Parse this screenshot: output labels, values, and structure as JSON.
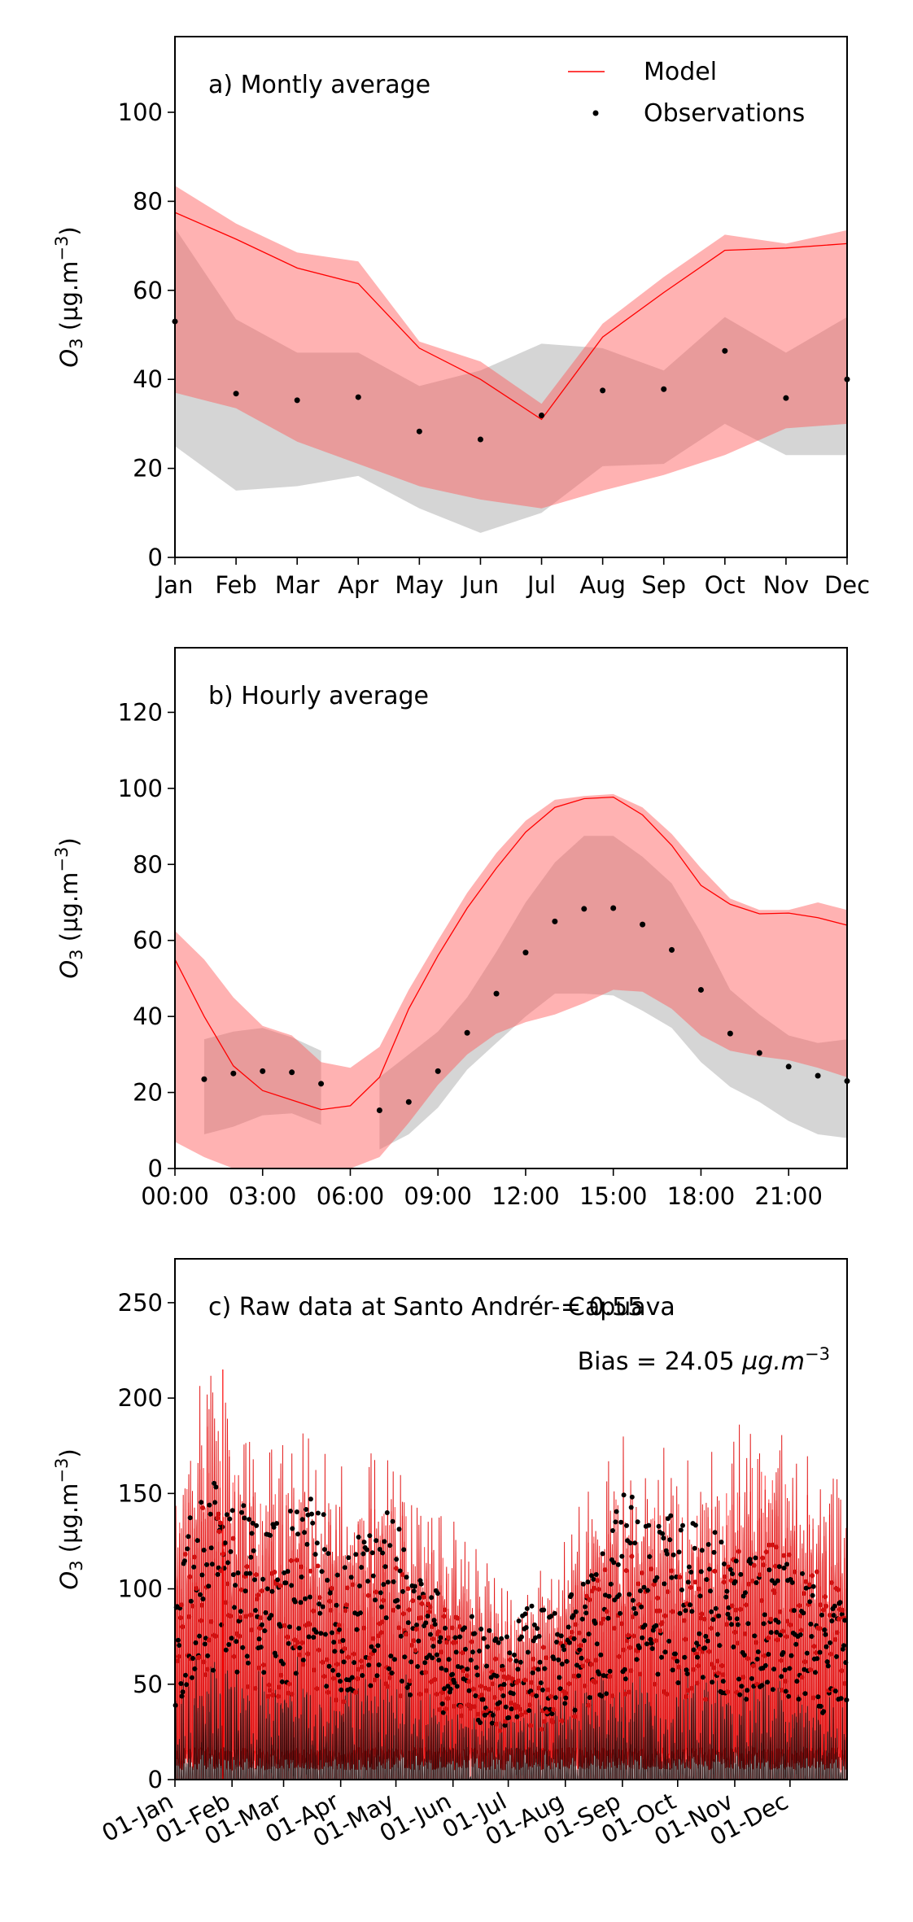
{
  "chart_data": [
    {
      "type": "line",
      "title": "a) Montly average",
      "ylabel": "O3 (µg.m−3)",
      "ylabel_parts": {
        "base": "O",
        "sub": "3",
        "units": " (µg.m",
        "sup": "−3",
        "close": ")"
      },
      "categories": [
        "Jan",
        "Feb",
        "Mar",
        "Apr",
        "May",
        "Jun",
        "Jul",
        "Aug",
        "Sep",
        "Oct",
        "Nov",
        "Dec"
      ],
      "ylim": [
        0,
        117
      ],
      "yticks": [
        0,
        20,
        40,
        60,
        80,
        100
      ],
      "legend": {
        "placement": "top-right",
        "entries": [
          "Model",
          "Observations"
        ]
      },
      "series": [
        {
          "name": "Model",
          "style": "line",
          "color": "#ff0000",
          "values": [
            77.5,
            71.5,
            65,
            61.5,
            47,
            40,
            31,
            49.5,
            59.5,
            69,
            69.5,
            70.5
          ]
        },
        {
          "name": "Observations",
          "style": "points",
          "color": "#000000",
          "values": [
            53,
            36.8,
            35.3,
            36,
            28.3,
            26.5,
            31.9,
            37.5,
            37.8,
            46.4,
            35.8,
            40
          ]
        }
      ],
      "bands": [
        {
          "of": "Observations",
          "color": "#b3b3b3",
          "opacity": 0.55,
          "upper": [
            74,
            53.5,
            46,
            46,
            38.5,
            42,
            48,
            47,
            42,
            54,
            46,
            54
          ],
          "lower": [
            25,
            15,
            16,
            18.3,
            11,
            5.5,
            10,
            20.5,
            21,
            30,
            23,
            23
          ]
        },
        {
          "of": "Model",
          "color": "#ff5555",
          "opacity": 0.45,
          "upper": [
            83.5,
            75,
            68.5,
            66.5,
            48.5,
            44,
            34.5,
            52.5,
            63,
            72.5,
            70.5,
            73.5
          ],
          "lower": [
            37,
            33.5,
            26,
            21,
            16,
            13,
            11,
            15,
            18.5,
            23,
            29,
            30
          ]
        }
      ]
    },
    {
      "type": "line",
      "title": "b) Hourly average",
      "ylabel": "O3 (µg.m−3)",
      "ylabel_parts": {
        "base": "O",
        "sub": "3",
        "units": " (µg.m",
        "sup": "−3",
        "close": ")"
      },
      "x_tick_labels": [
        "00:00",
        "03:00",
        "06:00",
        "09:00",
        "12:00",
        "15:00",
        "18:00",
        "21:00"
      ],
      "xlim": [
        0,
        23
      ],
      "ylim": [
        0,
        137
      ],
      "yticks": [
        0,
        20,
        40,
        60,
        80,
        100,
        120
      ],
      "series": [
        {
          "name": "Model",
          "style": "line",
          "color": "#ff0000",
          "hours": [
            0,
            1,
            2,
            3,
            4,
            5,
            6,
            7,
            8,
            9,
            10,
            11,
            12,
            13,
            14,
            15,
            16,
            17,
            18,
            19,
            20,
            21,
            22,
            23
          ],
          "values": [
            55,
            40,
            27,
            20.5,
            18,
            15.5,
            16.5,
            24,
            42,
            56,
            68.5,
            79,
            88.5,
            95,
            97.3,
            97.7,
            93,
            85,
            74.5,
            69.5,
            67,
            67.2,
            66,
            64
          ]
        },
        {
          "name": "Observations",
          "style": "points",
          "color": "#000000",
          "hours": [
            1,
            2,
            3,
            4,
            5,
            7,
            8,
            9,
            10,
            11,
            12,
            13,
            14,
            15,
            16,
            17,
            18,
            19,
            20,
            21,
            22,
            23
          ],
          "values": [
            23.5,
            25,
            25.6,
            25.3,
            22.3,
            15.3,
            17.5,
            25.6,
            35.7,
            46,
            56.8,
            65,
            68.3,
            68.5,
            64.2,
            57.5,
            47,
            35.5,
            30.4,
            26.8,
            24.4,
            23
          ]
        }
      ],
      "bands": [
        {
          "of": "Observations",
          "color": "#b3b3b3",
          "opacity": 0.55,
          "segments": [
            {
              "hours": [
                1,
                2,
                3,
                4,
                5
              ],
              "upper": [
                34,
                36,
                37,
                34.5,
                31
              ],
              "lower": [
                9,
                11,
                14,
                14.5,
                11.5
              ]
            },
            {
              "hours": [
                7,
                8,
                9,
                10,
                11,
                12,
                13,
                14,
                15,
                16,
                17,
                18,
                19,
                20,
                21,
                22,
                23
              ],
              "upper": [
                24,
                30,
                36,
                45,
                57,
                70,
                80.5,
                87.5,
                87.5,
                82,
                75,
                62,
                47,
                40.5,
                35,
                33,
                34
              ],
              "lower": [
                5,
                9,
                16,
                26,
                33,
                40,
                46,
                46,
                45.5,
                41.5,
                37,
                28,
                21.5,
                17.5,
                12.5,
                9,
                8
              ]
            }
          ]
        },
        {
          "of": "Model",
          "color": "#ff5555",
          "opacity": 0.45,
          "hours": [
            0,
            1,
            2,
            3,
            4,
            5,
            6,
            7,
            8,
            9,
            10,
            11,
            12,
            13,
            14,
            15,
            16,
            17,
            18,
            19,
            20,
            21,
            22,
            23
          ],
          "upper": [
            62.5,
            55,
            45,
            37.5,
            35,
            28,
            26.5,
            32,
            47,
            60,
            72.5,
            83,
            91.5,
            97,
            98,
            98.5,
            95,
            88,
            79,
            71,
            68,
            68,
            70,
            68
          ],
          "lower": [
            7,
            3,
            0,
            0,
            0,
            0,
            0,
            3,
            12,
            22,
            30,
            35.5,
            38.5,
            40.5,
            43.5,
            47,
            46.5,
            42,
            35,
            31,
            29.5,
            28.5,
            26.5,
            24
          ]
        }
      ]
    },
    {
      "type": "line",
      "title": "c) Raw data at Santo André - Capuava",
      "ylabel": "O3 (µg.m−3)",
      "ylabel_parts": {
        "base": "O",
        "sub": "3",
        "units": " (µg.m",
        "sup": "−3",
        "close": ")"
      },
      "annotations": [
        "r = 0.55",
        "Bias = 24.05 µg.m−3"
      ],
      "bias_parts": {
        "prefix": "Bias = 24.05 ",
        "units": "µg.m",
        "sup": "−3"
      },
      "x_tick_labels": [
        "01-Jan",
        "01-Feb",
        "01-Mar",
        "01-Apr",
        "01-May",
        "01-Jun",
        "01-Jul",
        "01-Aug",
        "01-Sep",
        "01-Oct",
        "01-Nov",
        "01-Dec"
      ],
      "x_tick_days": [
        0,
        31,
        59,
        90,
        120,
        151,
        181,
        212,
        243,
        273,
        304,
        334
      ],
      "xlim": [
        0,
        365
      ],
      "ylim": [
        0,
        273
      ],
      "yticks": [
        0,
        50,
        100,
        150,
        200,
        250
      ],
      "series": [
        {
          "name": "Model",
          "style": "hourly-line",
          "color": "#ff0000"
        },
        {
          "name": "Observations",
          "style": "points",
          "color": "#000000"
        }
      ],
      "envelope": {
        "note": "approximate daily peak envelope read from the figure",
        "days": [
          0,
          10,
          20,
          31,
          45,
          59,
          75,
          90,
          105,
          120,
          135,
          151,
          166,
          181,
          196,
          212,
          227,
          243,
          258,
          273,
          288,
          304,
          319,
          334,
          350,
          365
        ],
        "model_peak": [
          130,
          170,
          190,
          160,
          140,
          145,
          150,
          130,
          140,
          140,
          120,
          110,
          90,
          80,
          85,
          100,
          130,
          150,
          140,
          140,
          135,
          150,
          160,
          150,
          140,
          120
        ],
        "obs_peak": [
          110,
          150,
          160,
          150,
          140,
          140,
          150,
          120,
          140,
          140,
          110,
          90,
          85,
          80,
          95,
          100,
          110,
          150,
          145,
          140,
          140,
          120,
          115,
          115,
          100,
          95
        ]
      }
    }
  ]
}
